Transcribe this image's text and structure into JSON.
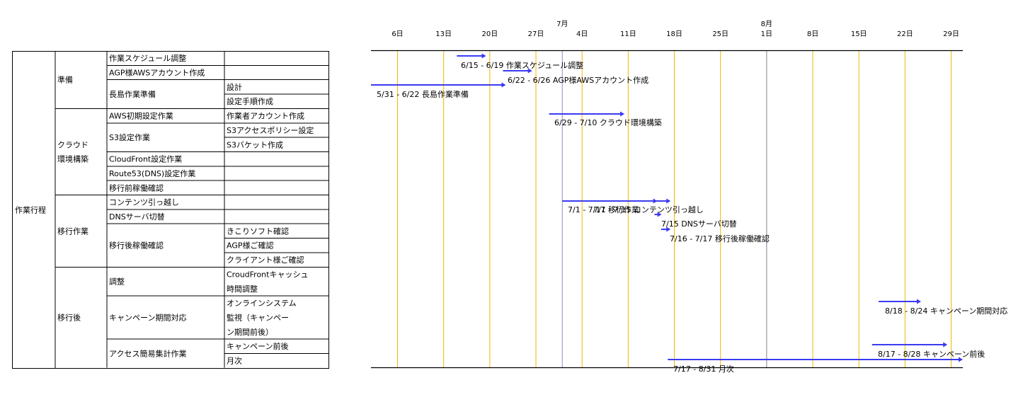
{
  "wbs": {
    "root_label": "作業行程",
    "phases": [
      {
        "label": "準備",
        "tasks": [
          {
            "label": "作業スケジュール調整",
            "subtasks": [
              ""
            ]
          },
          {
            "label": "AGP様AWSアカウント作成",
            "subtasks": [
              ""
            ]
          },
          {
            "label": "長島作業準備",
            "subtasks": [
              "設計",
              "設定手順作成"
            ]
          }
        ]
      },
      {
        "label": "クラウド環境構築",
        "tasks": [
          {
            "label": "AWS初期設定作業",
            "subtasks": [
              "作業者アカウント作成"
            ]
          },
          {
            "label": "S3設定作業",
            "subtasks": [
              "S3アクセスポリシー設定",
              "S3バケット作成"
            ]
          },
          {
            "label": "CloudFront設定作業",
            "subtasks": [
              ""
            ]
          },
          {
            "label": "Route53(DNS)設定作業",
            "subtasks": [
              ""
            ]
          },
          {
            "label": "移行前稼働確認",
            "subtasks": [
              ""
            ]
          }
        ]
      },
      {
        "label": "移行作業",
        "tasks": [
          {
            "label": "コンテンツ引っ越し",
            "subtasks": [
              ""
            ]
          },
          {
            "label": "DNSサーバ切替",
            "subtasks": [
              ""
            ]
          },
          {
            "label": "移行後稼働確認",
            "subtasks": [
              "きこりソフト確認",
              "AGP様ご確認",
              "クライアント様ご確認"
            ]
          }
        ]
      },
      {
        "label": "移行後",
        "tasks": [
          {
            "label": "調整",
            "subtasks": [
              "CroudFrontキャッシュ時間調整"
            ]
          },
          {
            "label": "キャンペーン期間対応",
            "subtasks": [
              "オンラインシステム監視（キャンペーン期間前後）"
            ]
          },
          {
            "label": "アクセス簡易集計作業",
            "subtasks": [
              "キャンペーン前後",
              "月次"
            ]
          }
        ]
      }
    ]
  },
  "chart_data": {
    "type": "gantt",
    "months": [
      {
        "label": "7月",
        "date": "7/1"
      },
      {
        "label": "8月",
        "date": "8/1"
      }
    ],
    "ticks": [
      {
        "date": "6/6",
        "label": "6日"
      },
      {
        "date": "6/13",
        "label": "13日"
      },
      {
        "date": "6/20",
        "label": "20日"
      },
      {
        "date": "6/27",
        "label": "27日"
      },
      {
        "date": "7/4",
        "label": "4日"
      },
      {
        "date": "7/11",
        "label": "11日"
      },
      {
        "date": "7/18",
        "label": "18日"
      },
      {
        "date": "7/25",
        "label": "25日"
      },
      {
        "date": "8/1",
        "label": "1日"
      },
      {
        "date": "8/8",
        "label": "8日"
      },
      {
        "date": "8/15",
        "label": "15日"
      },
      {
        "date": "8/22",
        "label": "22日"
      },
      {
        "date": "8/29",
        "label": "29日"
      }
    ],
    "tasks": [
      {
        "start": "6/15",
        "end": "6/19",
        "label": "6/15 - 6/19 作業スケジュール調整"
      },
      {
        "start": "6/22",
        "end": "6/26",
        "label": "6/22 - 6/26 AGP様AWSアカウント作成"
      },
      {
        "start": "5/31",
        "end": "6/22",
        "label": "5/31 - 6/22 長島作業準備"
      },
      {
        "start": "6/29",
        "end": "7/10",
        "label": "6/29 - 7/10 クラウド環境構築"
      },
      {
        "start": "7/1",
        "end": "7/17",
        "label": "7/1 - 7/17 移行作業"
      },
      {
        "start": "7/1",
        "end": "7/15",
        "label": "7/1 - 7/15 コンテンツ引っ越し"
      },
      {
        "start": "7/15",
        "end": "7/15",
        "label": "7/15 DNSサーバ切替"
      },
      {
        "start": "7/16",
        "end": "7/17",
        "label": "7/16 - 7/17 移行後稼働確認"
      },
      {
        "start": "8/18",
        "end": "8/24",
        "label": "8/18 - 8/24 キャンペーン期間対応"
      },
      {
        "start": "8/17",
        "end": "8/28",
        "label": "8/17 - 8/28 キャンペーン前後"
      },
      {
        "start": "7/17",
        "end": "8/31",
        "label": "7/17 - 8/31 月次"
      }
    ],
    "colors": {
      "bar": "#3b3bf2",
      "gridline": "#f0b800",
      "month_line": "#8c8cc8",
      "axis": "#000000"
    }
  }
}
